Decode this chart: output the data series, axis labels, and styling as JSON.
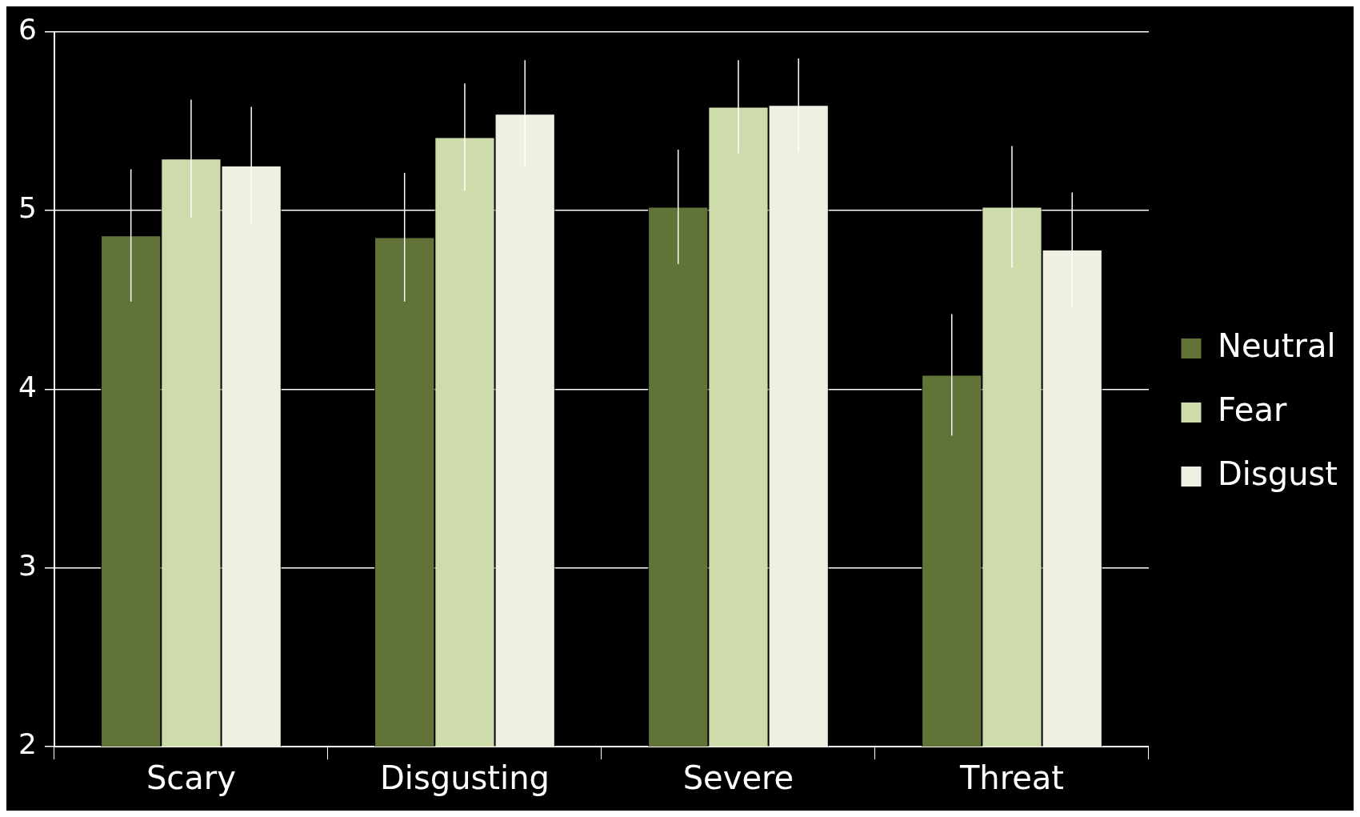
{
  "chart_data": {
    "type": "bar",
    "categories": [
      "Scary",
      "Disgusting",
      "Severe",
      "Threat"
    ],
    "series": [
      {
        "name": "Neutral",
        "color": "#617337",
        "values": [
          4.86,
          4.85,
          5.02,
          4.08
        ],
        "errors": [
          0.37,
          0.36,
          0.32,
          0.34
        ]
      },
      {
        "name": "Fear",
        "color": "#cddcaa",
        "values": [
          5.29,
          5.41,
          5.58,
          5.02
        ],
        "errors": [
          0.33,
          0.3,
          0.26,
          0.34
        ]
      },
      {
        "name": "Disgust",
        "color": "#eef1e2",
        "values": [
          5.25,
          5.54,
          5.59,
          4.78
        ],
        "errors": [
          0.33,
          0.3,
          0.26,
          0.32
        ]
      }
    ],
    "ylim": [
      2,
      6
    ],
    "yticks": [
      2,
      3,
      4,
      5,
      6
    ],
    "grid": "y",
    "legend": "right"
  }
}
